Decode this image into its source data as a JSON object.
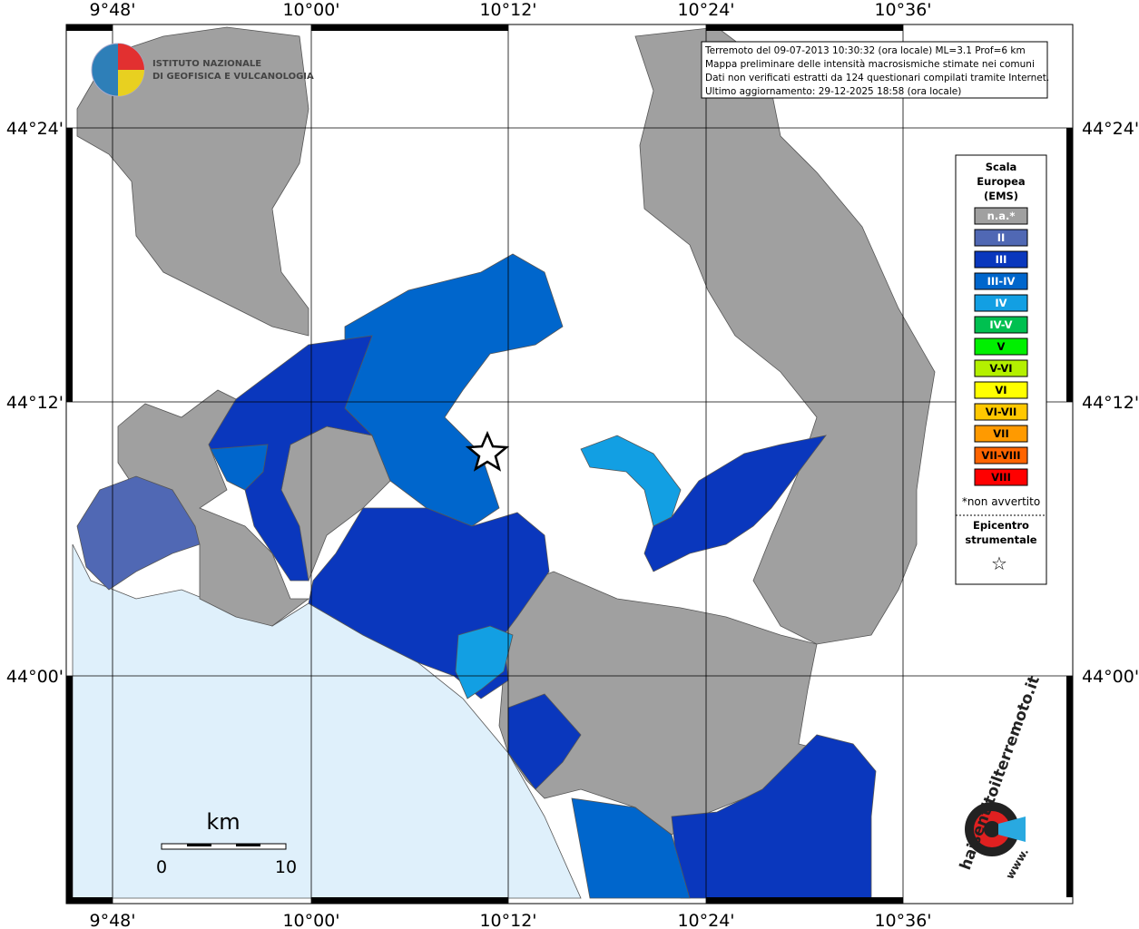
{
  "map": {
    "lon_labels": [
      "9°48'",
      "10°00'",
      "10°12'",
      "10°24'",
      "10°36'"
    ],
    "lat_labels": [
      "44°24'",
      "44°12'",
      "44°00'"
    ],
    "info": [
      "Terremoto del 09-07-2013 10:30:32 (ora locale) ML=3.1 Prof=6 km",
      "Mappa preliminare delle intensità macrosismiche stimate nei comuni",
      "Dati non verificati estratti da 124 questionari compilati tramite Internet.",
      "Ultimo aggiornamento: 29-12-2025 18:58 (ora locale)"
    ],
    "institute": [
      "ISTITUTO NAZIONALE",
      "DI GEOFISICA E VULCANOLOGIA"
    ],
    "legend": {
      "title": [
        "Scala",
        "Europea",
        "(EMS)"
      ],
      "items": [
        {
          "label": "n.a.*",
          "color": "#a0a0a0"
        },
        {
          "label": "II",
          "color": "#5068b4"
        },
        {
          "label": "III",
          "color": "#0a37bd"
        },
        {
          "label": "III-IV",
          "color": "#0066cc"
        },
        {
          "label": "IV",
          "color": "#129fe3"
        },
        {
          "label": "IV-V",
          "color": "#00c050"
        },
        {
          "label": "V",
          "color": "#00f000"
        },
        {
          "label": "V-VI",
          "color": "#b4f000"
        },
        {
          "label": "VI",
          "color": "#ffff00"
        },
        {
          "label": "VI-VII",
          "color": "#ffc800"
        },
        {
          "label": "VII",
          "color": "#ff9a00"
        },
        {
          "label": "VII-VIII",
          "color": "#ff6400"
        },
        {
          "label": "VIII",
          "color": "#ff0000"
        }
      ],
      "note": "*non avvertito",
      "epicenter": [
        "Epicentro",
        "strumentale"
      ],
      "star": "☆"
    },
    "scale": {
      "unit": "km",
      "labels": [
        "0",
        "10"
      ]
    },
    "logo": "haisentitoilterremoto.it",
    "logo_www": "www."
  }
}
